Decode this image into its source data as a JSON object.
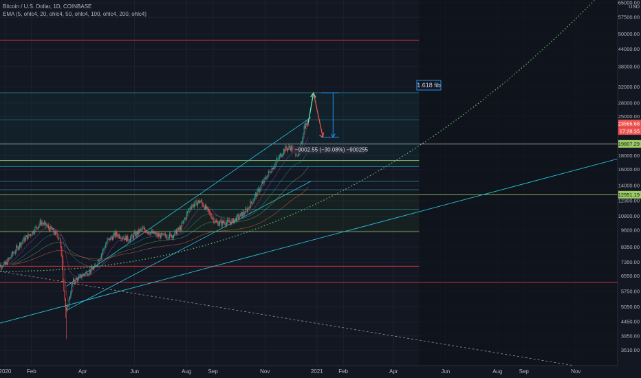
{
  "header": {
    "symbol": "Bitcoin / U.S. Dollar, 1D, COINBASE",
    "indicator": "EMA (5, ohlc4, 20, ohlc4, 50, ohlc4, 100, ohlc4, 200, ohlc4)"
  },
  "colors": {
    "background": "#131722",
    "up": "#26a69a",
    "down": "#ef5350",
    "grid": "#1e2230",
    "fib": "#2196f3",
    "red_line": "#f23645",
    "green_line": "#9ccc65",
    "teal_line": "#26c6da",
    "dotted_curve": "#66bb6a"
  },
  "chart_data": {
    "type": "candlestick",
    "y_scale": "log",
    "currency": "USD",
    "y_ticks": [
      3510,
      3950,
      4450,
      5050,
      5750,
      6550,
      7350,
      8350,
      9600,
      10800,
      12300,
      14000,
      16000,
      18000,
      20000,
      23000,
      25000,
      28000,
      32000,
      38000,
      44000,
      50000,
      57500,
      65000
    ],
    "y_tick_labels": [
      "3510.00",
      "3950.00",
      "4450.00",
      "5050.00",
      "5750.00",
      "6550.00",
      "7350.00",
      "8350.00",
      "9600.00",
      "10800.00",
      "12300.00",
      "14000.00",
      "16000.00",
      "18000.00",
      "",
      "",
      "25000.00",
      "28000.00",
      "32000.00",
      "38000.00",
      "44000.00",
      "50000.00",
      "57500.00",
      "65000.00"
    ],
    "x_labels": [
      "2020",
      "Feb",
      "Apr",
      "Jun",
      "Aug",
      "Sep",
      "Nov",
      "2021",
      "Feb",
      "Apr",
      "Jun",
      "Aug",
      "Sep",
      "Nov"
    ],
    "x_label_dates": [
      "2020-01-01",
      "2020-02-01",
      "2020-04-01",
      "2020-06-01",
      "2020-08-01",
      "2020-09-01",
      "2020-11-01",
      "2021-01-01",
      "2021-02-01",
      "2021-04-01",
      "2021-06-01",
      "2021-08-01",
      "2021-09-01",
      "2021-11-01"
    ],
    "price_path": [
      [
        "2019-12-20",
        7150
      ],
      [
        "2020-01-01",
        7200
      ],
      [
        "2020-01-10",
        7900
      ],
      [
        "2020-01-20",
        8700
      ],
      [
        "2020-02-01",
        9400
      ],
      [
        "2020-02-12",
        10300
      ],
      [
        "2020-02-25",
        9600
      ],
      [
        "2020-03-05",
        9000
      ],
      [
        "2020-03-12",
        5000
      ],
      [
        "2020-03-13",
        4800
      ],
      [
        "2020-03-20",
        6200
      ],
      [
        "2020-04-01",
        6600
      ],
      [
        "2020-04-15",
        7000
      ],
      [
        "2020-04-30",
        8800
      ],
      [
        "2020-05-10",
        9300
      ],
      [
        "2020-05-25",
        8900
      ],
      [
        "2020-06-10",
        9700
      ],
      [
        "2020-06-30",
        9150
      ],
      [
        "2020-07-15",
        9200
      ],
      [
        "2020-07-25",
        9800
      ],
      [
        "2020-08-05",
        11700
      ],
      [
        "2020-08-17",
        12300
      ],
      [
        "2020-09-05",
        10200
      ],
      [
        "2020-09-23",
        10300
      ],
      [
        "2020-10-10",
        11300
      ],
      [
        "2020-10-21",
        12900
      ],
      [
        "2020-11-05",
        15500
      ],
      [
        "2020-11-24",
        19000
      ],
      [
        "2020-12-01",
        19300
      ],
      [
        "2020-12-11",
        18000
      ],
      [
        "2020-12-17",
        23000
      ],
      [
        "2020-12-22",
        23800
      ]
    ],
    "last_price": "23566.68",
    "countdown": "17:28:35",
    "price_marker_1": "19807.29",
    "price_marker_2": "12951.19",
    "measure_label": "−9002.55 (−30.08%) −900255",
    "fib_label": "1.618 fib",
    "horizontal_levels": {
      "red": [
        6200,
        47500,
        7100
      ],
      "white": [
        19850
      ],
      "green": [
        12950,
        9500,
        17250
      ],
      "teal": [
        30500,
        24300,
        16400,
        14500,
        13500,
        11450
      ]
    },
    "projection": {
      "up_to": 30500,
      "down_to": 21000,
      "measured_range": [
        30500,
        21000
      ]
    }
  }
}
